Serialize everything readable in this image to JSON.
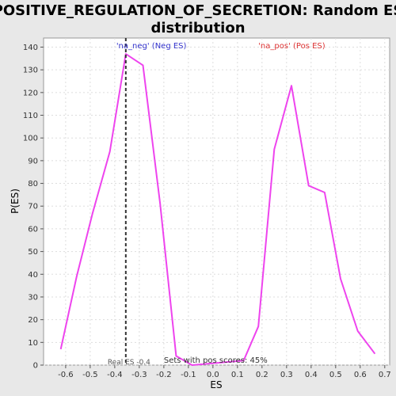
{
  "chart_data": {
    "type": "line",
    "title_line1": "POSITIVE_REGULATION_OF_SECRETION: Random ES",
    "title_line2": "distribution",
    "xlabel": "ES",
    "ylabel": "P(ES)",
    "xlim": [
      -0.69,
      0.72
    ],
    "ylim": [
      0,
      144
    ],
    "x_ticks": [
      -0.6,
      -0.5,
      -0.4,
      -0.3,
      -0.2,
      -0.1,
      0.0,
      0.1,
      0.2,
      0.3,
      0.4,
      0.5,
      0.6,
      0.7
    ],
    "x_tick_labels": [
      "-0.6",
      "-0.5",
      "-0.4",
      "-0.3",
      "-0.2",
      "-0.1",
      "0.0",
      "0.1",
      "0.2",
      "0.3",
      "0.4",
      "0.5",
      "0.6",
      "0.7"
    ],
    "y_ticks": [
      0,
      10,
      20,
      30,
      40,
      50,
      60,
      70,
      80,
      90,
      100,
      110,
      120,
      130,
      140
    ],
    "y_tick_labels": [
      "0",
      "10",
      "20",
      "30",
      "40",
      "50",
      "60",
      "70",
      "80",
      "90",
      "100",
      "110",
      "120",
      "130",
      "140"
    ],
    "grid": true,
    "line_color": "#ee44ee",
    "series": [
      {
        "x": [
          -0.62,
          -0.555,
          -0.49,
          -0.42,
          -0.355,
          -0.285,
          -0.215,
          -0.15,
          -0.085,
          0.125,
          0.185,
          0.25,
          0.32,
          0.39,
          0.455,
          0.52,
          0.59,
          0.66
        ],
        "values": [
          7,
          39,
          67,
          94,
          137,
          132,
          71,
          4,
          0,
          2,
          17,
          95,
          123,
          79,
          76,
          38,
          15,
          5
        ]
      }
    ],
    "real_es_x": -0.355,
    "real_es_label": "Real ES -0.4",
    "neg_label": "'na_neg' (Neg ES)",
    "neg_color": "#3333cc",
    "pos_label": "'na_pos' (Pos ES)",
    "pos_color": "#dd3333",
    "pos_scores_label": "Sets with pos scores: 45%"
  }
}
